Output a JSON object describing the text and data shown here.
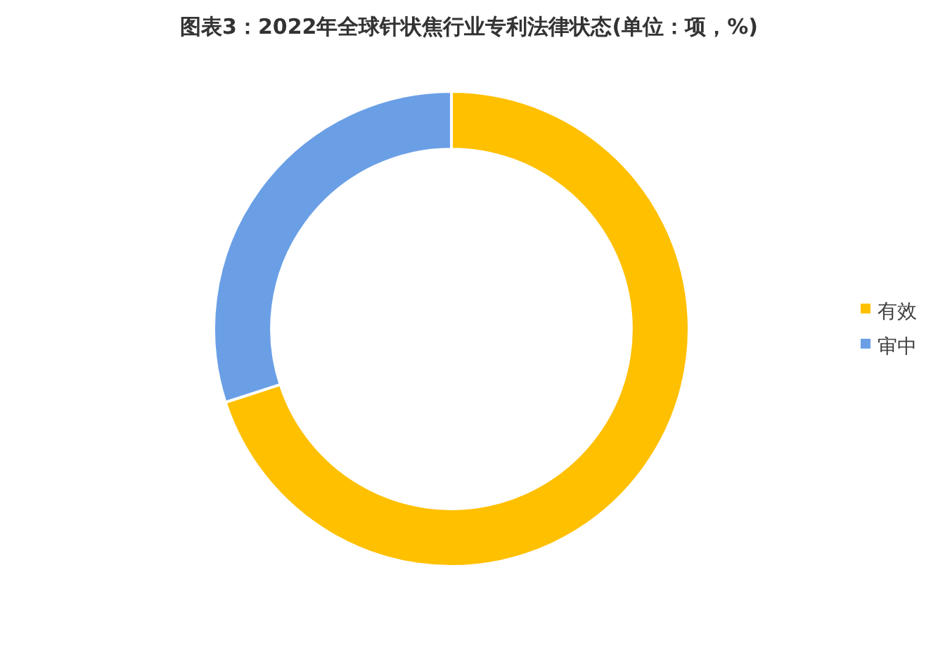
{
  "chart_data": {
    "type": "donut",
    "title": "图表3：2022年全球针状焦行业专利法律状态(单位：项，%)",
    "categories": [
      "有效",
      "审中"
    ],
    "values": [
      70,
      30
    ],
    "colors": [
      "#ffc000",
      "#6a9fe6"
    ],
    "legend": "right"
  }
}
